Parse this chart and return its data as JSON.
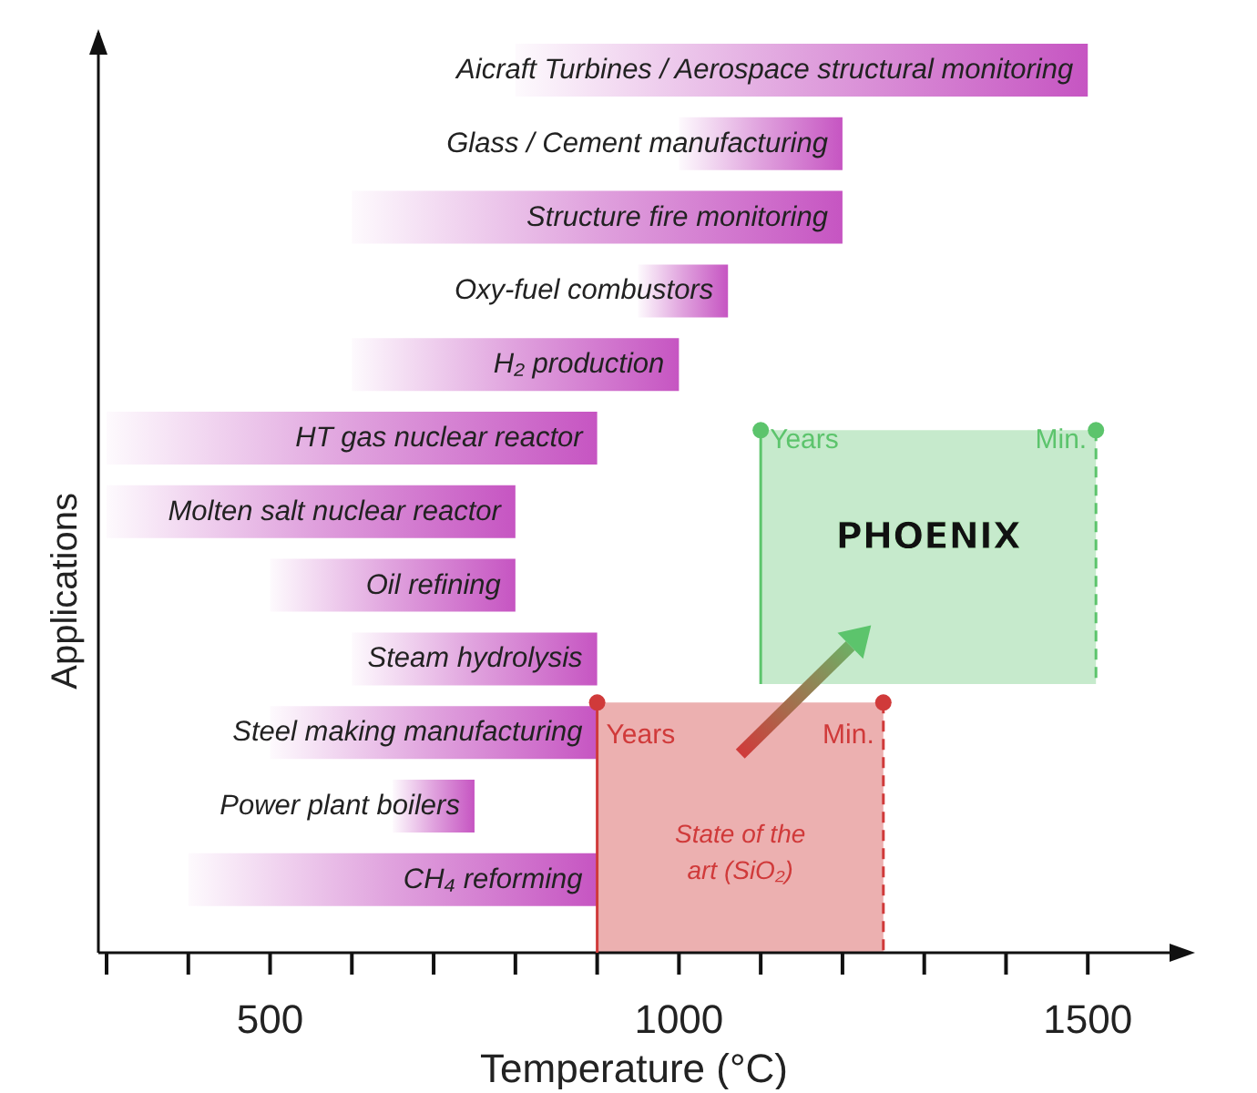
{
  "chart_data": {
    "type": "bar",
    "orientation": "horizontal",
    "xlabel": "Temperature (°C)",
    "ylabel": "Applications",
    "categories": [
      "Aicraft Turbines / Aerospace structural monitoring",
      "Glass / Cement manufacturing",
      "Structure fire monitoring",
      "Oxy-fuel combustors",
      "H₂ production",
      "HT gas nuclear reactor",
      "Molten salt nuclear reactor",
      "Oil refining",
      "Steam hydrolysis",
      "Steel making manufacturing",
      "Power plant boilers",
      "CH₄ reforming"
    ],
    "base": [
      800,
      1000,
      600,
      950,
      600,
      300,
      300,
      500,
      600,
      500,
      650,
      400
    ],
    "values": [
      700,
      200,
      600,
      110,
      400,
      600,
      500,
      300,
      300,
      400,
      100,
      500
    ],
    "color": "#c655c2",
    "xlim": [
      290,
      1600
    ],
    "xticks": [
      {
        "value": 300,
        "label": null
      },
      {
        "value": 400,
        "label": null
      },
      500,
      {
        "value": 600,
        "label": null
      },
      {
        "value": 700,
        "label": null
      },
      {
        "value": 800,
        "label": null
      },
      {
        "value": 900,
        "label": null
      },
      1000,
      {
        "value": 1100,
        "label": null
      },
      {
        "value": 1200,
        "label": null
      },
      {
        "value": 1300,
        "label": null
      },
      {
        "value": 1400,
        "label": null
      },
      1500
    ],
    "bands": [
      {
        "axis": "x",
        "from": 900,
        "to": 1250,
        "label": "State of the art (SiO₂)",
        "color": "#d03a3a"
      },
      {
        "axis": "x",
        "from": 1100,
        "to": 1510,
        "label": "PHOENIX",
        "color": "#5cc46c"
      }
    ],
    "annotations": [
      {
        "text": "Years",
        "x": 900,
        "y": "Steel making manufacturing"
      },
      {
        "text": "Min.",
        "x": 1250,
        "y": "Steel making manufacturing"
      },
      {
        "text": "Years",
        "x": 1100,
        "y": "HT gas nuclear reactor"
      },
      {
        "text": "Min.",
        "x": 1510,
        "y": "HT gas nuclear reactor"
      }
    ],
    "grid": false,
    "legend": false
  }
}
